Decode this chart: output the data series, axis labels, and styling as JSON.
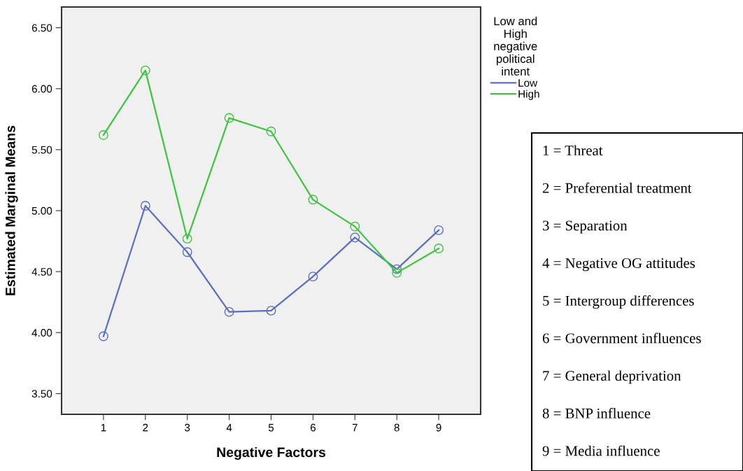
{
  "chart_data": {
    "type": "line",
    "xlabel": "Negative Factors",
    "ylabel": "Estimated Marginal Means",
    "legend_title": "Low and\nHigh\nnegative\npolitical\nintent",
    "x": [
      1,
      2,
      3,
      4,
      5,
      6,
      7,
      8,
      9
    ],
    "series": [
      {
        "name": "Low",
        "color": "#5b6fbf",
        "values": [
          3.97,
          5.04,
          4.66,
          4.17,
          4.18,
          4.46,
          4.78,
          4.52,
          4.84
        ]
      },
      {
        "name": "High",
        "color": "#3ec43e",
        "values": [
          5.62,
          6.15,
          4.77,
          5.76,
          5.65,
          5.09,
          4.87,
          4.49,
          4.69
        ]
      }
    ],
    "xlim": [
      0,
      10
    ],
    "xticks": [
      1,
      2,
      3,
      4,
      5,
      6,
      7,
      8,
      9
    ],
    "ylim": [
      3.33,
      6.67
    ],
    "yticks": [
      {
        "value": 3.5,
        "label": "3.50"
      },
      {
        "value": 4.0,
        "label": "4.00"
      },
      {
        "value": 4.5,
        "label": "4.50"
      },
      {
        "value": 5.0,
        "label": "5.00"
      },
      {
        "value": 5.5,
        "label": "5.50"
      },
      {
        "value": 6.0,
        "label": "6.00"
      },
      {
        "value": 6.5,
        "label": "6.50"
      }
    ],
    "grid": false,
    "legend": "top right",
    "marker": "circle",
    "line_style": "solid",
    "annotations": [
      "1 = Threat",
      "2 = Preferential treatment",
      "3 = Separation",
      "4 = Negative OG attitudes",
      "5 = Intergroup differences",
      "6 = Government influences",
      "7 = General deprivation",
      "8 = BNP influence",
      "9 = Media influence"
    ]
  }
}
